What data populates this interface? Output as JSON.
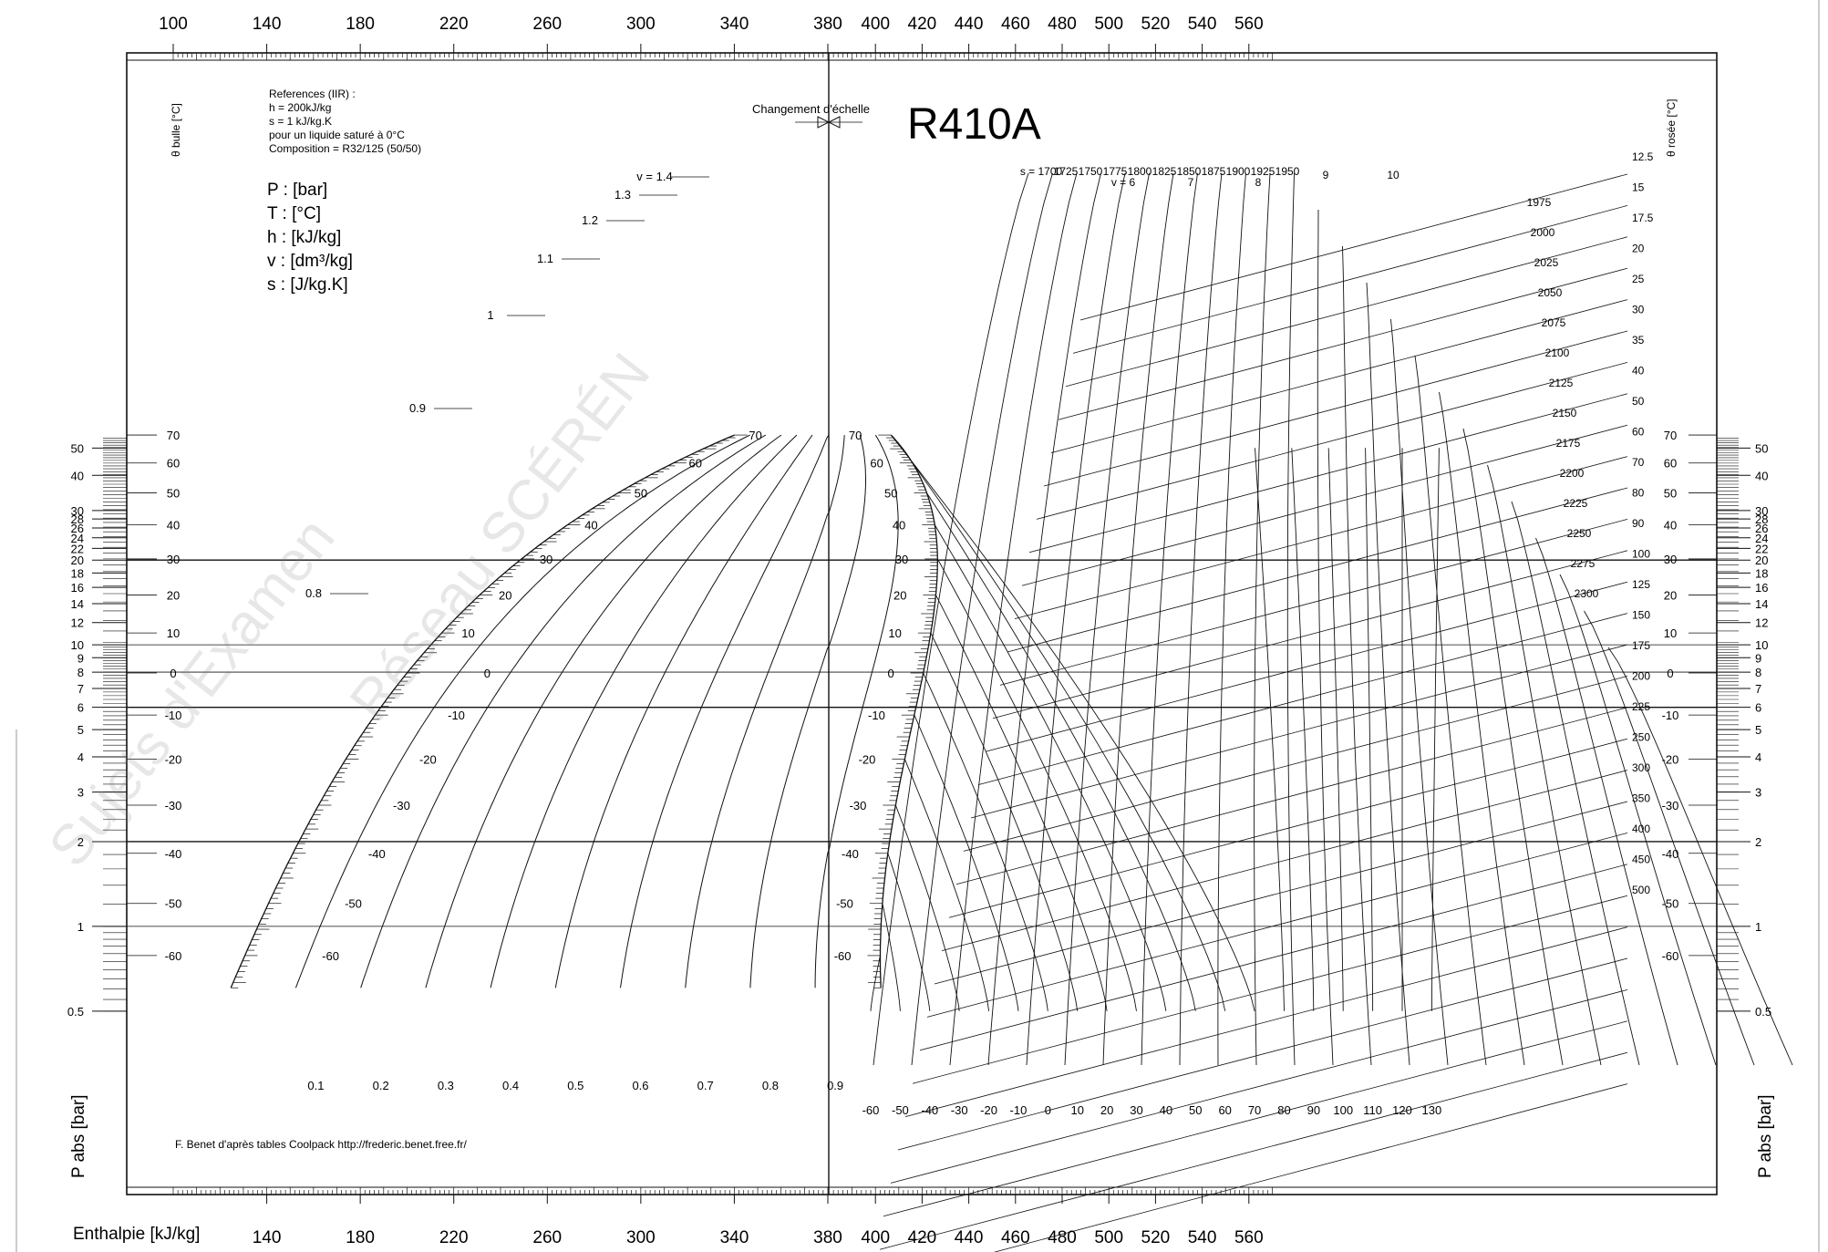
{
  "chart_data": {
    "type": "line",
    "title": "R410A",
    "xlabel": "Enthalpie [kJ/kg]",
    "ylabel": "P abs [bar]",
    "left_temp_label": "θ bulle [°C]",
    "right_temp_label": "θ rosée [°C]",
    "top_x_ticks": [
      "100",
      "140",
      "180",
      "220",
      "260",
      "300",
      "340",
      "380",
      "400",
      "420",
      "440",
      "460",
      "480",
      "500",
      "520",
      "540",
      "560"
    ],
    "bottom_x_ticks": [
      "140",
      "180",
      "220",
      "260",
      "300",
      "340",
      "380",
      "400",
      "420",
      "440",
      "460",
      "480",
      "500",
      "520",
      "540",
      "560"
    ],
    "p_ticks": [
      "50",
      "40",
      "30",
      "28",
      "26",
      "24",
      "22",
      "20",
      "18",
      "16",
      "14",
      "12",
      "10",
      "9",
      "8",
      "7",
      "6",
      "5",
      "4",
      "3",
      "2",
      "1",
      "0.5"
    ],
    "t_ticks": [
      "70",
      "60",
      "50",
      "40",
      "30",
      "20",
      "10",
      "0",
      "-10",
      "-20",
      "-30",
      "-40",
      "-50",
      "-60"
    ],
    "references": [
      "References (IIR) :",
      "h = 200kJ/kg",
      "s = 1 kJ/kg.K",
      "pour un liquide saturé à 0°C",
      "Composition = R32/125 (50/50)"
    ],
    "units_legend": [
      "P : [bar]",
      "T : [°C]",
      "h : [kJ/kg]",
      "v : [dm³/kg]",
      "s : [J/kg.K]"
    ],
    "scale_change": "Changement d'échelle",
    "credit": "F. Benet d'après tables Coolpack http://frederic.benet.free.fr/",
    "quality_labels": [
      "0.1",
      "0.2",
      "0.3",
      "0.4",
      "0.5",
      "0.6",
      "0.7",
      "0.8",
      "0.9"
    ],
    "vapor_temp_labels": [
      "-60",
      "-50",
      "-40",
      "-30",
      "-20",
      "-10",
      "0",
      "10",
      "20",
      "30",
      "40",
      "50",
      "60",
      "70",
      "80",
      "90",
      "100",
      "110",
      "120",
      "130"
    ],
    "v_labels_liquid": [
      "v = 1.4",
      "1.3",
      "1.2",
      "1.1",
      "1",
      "0.9",
      "0.8"
    ],
    "v_labels_vapor": [
      "v = 6",
      "7",
      "8",
      "9",
      "10",
      "12.5",
      "15",
      "17.5",
      "20",
      "25",
      "30",
      "35",
      "40",
      "50",
      "60",
      "70",
      "80",
      "90",
      "100",
      "125",
      "150",
      "175",
      "200",
      "225",
      "250",
      "300",
      "350",
      "400",
      "450",
      "500"
    ],
    "s_labels": [
      "s = 1700",
      "1725",
      "1750",
      "1775",
      "1800",
      "1825",
      "1850",
      "1875",
      "1900",
      "1925",
      "1950",
      "1975",
      "2000",
      "2025",
      "2050",
      "2075",
      "2100",
      "2125",
      "2150",
      "2175",
      "2200",
      "2225",
      "2250",
      "2275",
      "2300"
    ],
    "watermark": [
      "Sujets d'Examen",
      "Réseau SCÉRÉN"
    ]
  }
}
